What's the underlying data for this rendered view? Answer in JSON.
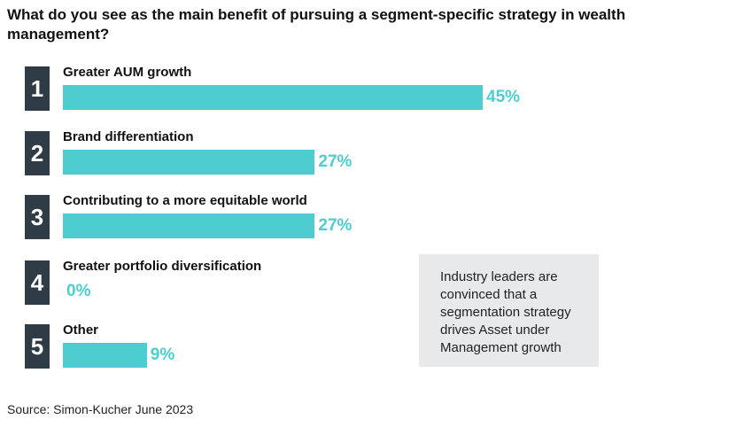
{
  "chart_data": {
    "type": "bar",
    "title": "What do you see as the main benefit of pursuing a segment-specific strategy in wealth management?",
    "ranks": [
      1,
      2,
      3,
      4,
      5
    ],
    "categories": [
      "Greater AUM growth",
      "Brand differentiation",
      "Contributing to a more equitable world",
      "Greater portfolio diversification",
      "Other"
    ],
    "values": [
      45,
      27,
      27,
      0,
      9
    ],
    "value_labels": [
      "45%",
      "27%",
      "27%",
      "0%",
      "9%"
    ],
    "color": "#4ecdd0",
    "annotation": "Industry leaders are convinced that a segmentation strategy drives Asset under Management growth",
    "source": "Source: Simon-Kucher June 2023"
  }
}
